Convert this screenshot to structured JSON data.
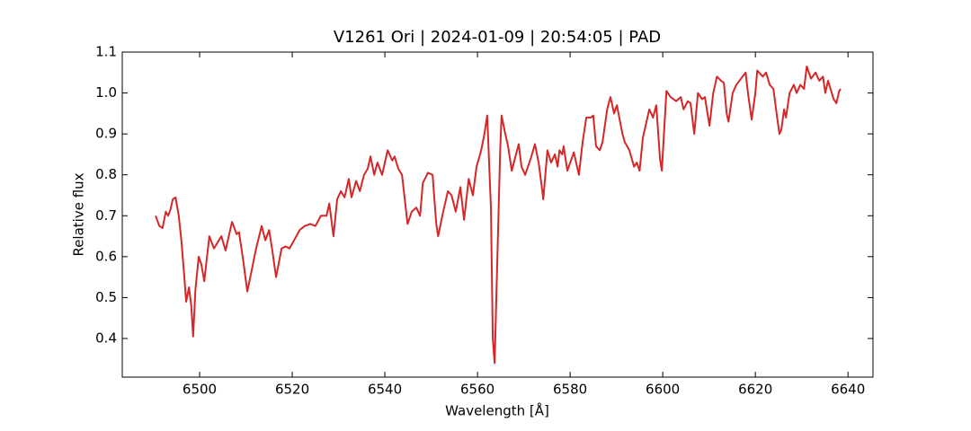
{
  "chart_data": {
    "type": "line",
    "title": "V1261 Ori | 2024-01-09 | 20:54:05 | PAD",
    "xlabel": "Wavelength [Å]",
    "ylabel": "Relative flux",
    "xlim": [
      6483.3,
      6645.4
    ],
    "ylim": [
      0.3056,
      1.1
    ],
    "xticks": [
      6500,
      6520,
      6540,
      6560,
      6580,
      6600,
      6620,
      6640
    ],
    "yticks": [
      0.4,
      0.5,
      0.6,
      0.7,
      0.8,
      0.9,
      {
        "value": 1,
        "label": "1.0"
      },
      1.1
    ],
    "grid": false,
    "series": [
      {
        "color": "#d62728",
        "x": [
          6490.5,
          6491.3,
          6492,
          6492.7,
          6493.2,
          6493.7,
          6494.2,
          6494.8,
          6495.5,
          6496.1,
          6496.7,
          6497.1,
          6497.7,
          6498.2,
          6498.6,
          6499.1,
          6499.8,
          6500.4,
          6501,
          6502.1,
          6503.1,
          6504.7,
          6505.6,
          6507,
          6508,
          6508.5,
          6509.3,
          6510.3,
          6511.3,
          6512.2,
          6513.4,
          6514.2,
          6515,
          6515.7,
          6516.5,
          6517.7,
          6518.6,
          6519.4,
          6520.4,
          6521.6,
          6522.7,
          6523.9,
          6525,
          6526.2,
          6527.4,
          6528,
          6528.9,
          6529.7,
          6530.5,
          6531.3,
          6532.2,
          6532.8,
          6533.8,
          6534.6,
          6535.5,
          6536.3,
          6536.9,
          6537.7,
          6538.4,
          6539.4,
          6540.6,
          6541.6,
          6542.1,
          6542.9,
          6543.7,
          6544.3,
          6544.9,
          6545.8,
          6546.8,
          6547.6,
          6548.2,
          6549.3,
          6550.3,
          6551.1,
          6551.5,
          6552.6,
          6553.6,
          6554.4,
          6555.3,
          6556.3,
          6557.1,
          6558.1,
          6559,
          6559.8,
          6560.8,
          6561.5,
          6562.1,
          6562.9,
          6563.3,
          6563.7,
          6564.3,
          6564.9,
          6565.2,
          6566,
          6566.6,
          6567.4,
          6568.9,
          6569.5,
          6570.3,
          6571.5,
          6572.4,
          6573.2,
          6574,
          6574.2,
          6575.1,
          6575.9,
          6576.7,
          6577.3,
          6577.7,
          6578.3,
          6578.6,
          6579.4,
          6580.8,
          6581.9,
          6582.7,
          6583.5,
          6584.5,
          6585,
          6585.6,
          6586.4,
          6587,
          6588,
          6588.7,
          6589.5,
          6590.1,
          6591.3,
          6591.8,
          6592.8,
          6593.8,
          6594.4,
          6595,
          6595.7,
          6596.5,
          6597.1,
          6597.9,
          6598.6,
          6599.4,
          6599.8,
          6600.8,
          6601.7,
          6602.9,
          6603.9,
          6604.5,
          6605.4,
          6606,
          6606.8,
          6607.6,
          6608.5,
          6609.1,
          6610.1,
          6610.9,
          6611.7,
          6612.6,
          6613.2,
          6613.8,
          6614.2,
          6615.1,
          6615.9,
          6617.9,
          6618.4,
          6619.2,
          6620,
          6620.4,
          6621.6,
          6622.3,
          6623.1,
          6623.9,
          6624.7,
          6625.2,
          6625.6,
          6626.2,
          6626.6,
          6627.4,
          6628.3,
          6628.9,
          6629.7,
          6630.5,
          6631.1,
          6632,
          6633,
          6633.8,
          6634.6,
          6635.1,
          6635.7,
          6636.9,
          6637.5,
          6638.1,
          6638.4
        ],
        "values": [
          0.7,
          0.675,
          0.67,
          0.71,
          0.7,
          0.715,
          0.74,
          0.745,
          0.7,
          0.635,
          0.55,
          0.49,
          0.525,
          0.48,
          0.405,
          0.52,
          0.6,
          0.58,
          0.54,
          0.65,
          0.62,
          0.65,
          0.615,
          0.685,
          0.655,
          0.66,
          0.6,
          0.515,
          0.57,
          0.62,
          0.675,
          0.64,
          0.665,
          0.615,
          0.55,
          0.62,
          0.625,
          0.62,
          0.64,
          0.665,
          0.675,
          0.68,
          0.675,
          0.7,
          0.7,
          0.73,
          0.65,
          0.74,
          0.76,
          0.745,
          0.79,
          0.745,
          0.785,
          0.76,
          0.8,
          0.815,
          0.845,
          0.8,
          0.83,
          0.8,
          0.86,
          0.835,
          0.845,
          0.815,
          0.8,
          0.74,
          0.68,
          0.71,
          0.72,
          0.7,
          0.78,
          0.805,
          0.8,
          0.68,
          0.65,
          0.71,
          0.76,
          0.75,
          0.71,
          0.77,
          0.69,
          0.79,
          0.75,
          0.82,
          0.86,
          0.9,
          0.945,
          0.72,
          0.4,
          0.34,
          0.6,
          0.86,
          0.945,
          0.9,
          0.87,
          0.81,
          0.875,
          0.82,
          0.8,
          0.84,
          0.875,
          0.83,
          0.76,
          0.74,
          0.86,
          0.83,
          0.85,
          0.82,
          0.86,
          0.85,
          0.87,
          0.81,
          0.855,
          0.8,
          0.88,
          0.94,
          0.94,
          0.945,
          0.87,
          0.86,
          0.88,
          0.96,
          0.99,
          0.95,
          0.97,
          0.9,
          0.88,
          0.86,
          0.82,
          0.83,
          0.81,
          0.89,
          0.93,
          0.96,
          0.94,
          0.97,
          0.84,
          0.81,
          1.005,
          0.99,
          0.98,
          0.99,
          0.96,
          0.98,
          0.975,
          0.9,
          1.0,
          0.985,
          0.99,
          0.92,
          1.0,
          1.04,
          1.03,
          1.025,
          0.95,
          0.93,
          1.0,
          1.02,
          1.05,
          1.0,
          0.935,
          1.0,
          1.055,
          1.04,
          1.05,
          1.02,
          1.01,
          0.94,
          0.9,
          0.91,
          0.96,
          0.94,
          1.0,
          1.02,
          1.0,
          1.02,
          1.01,
          1.065,
          1.035,
          1.05,
          1.03,
          1.04,
          1.0,
          1.03,
          0.985,
          0.975,
          1.005,
          1.01
        ]
      }
    ]
  }
}
